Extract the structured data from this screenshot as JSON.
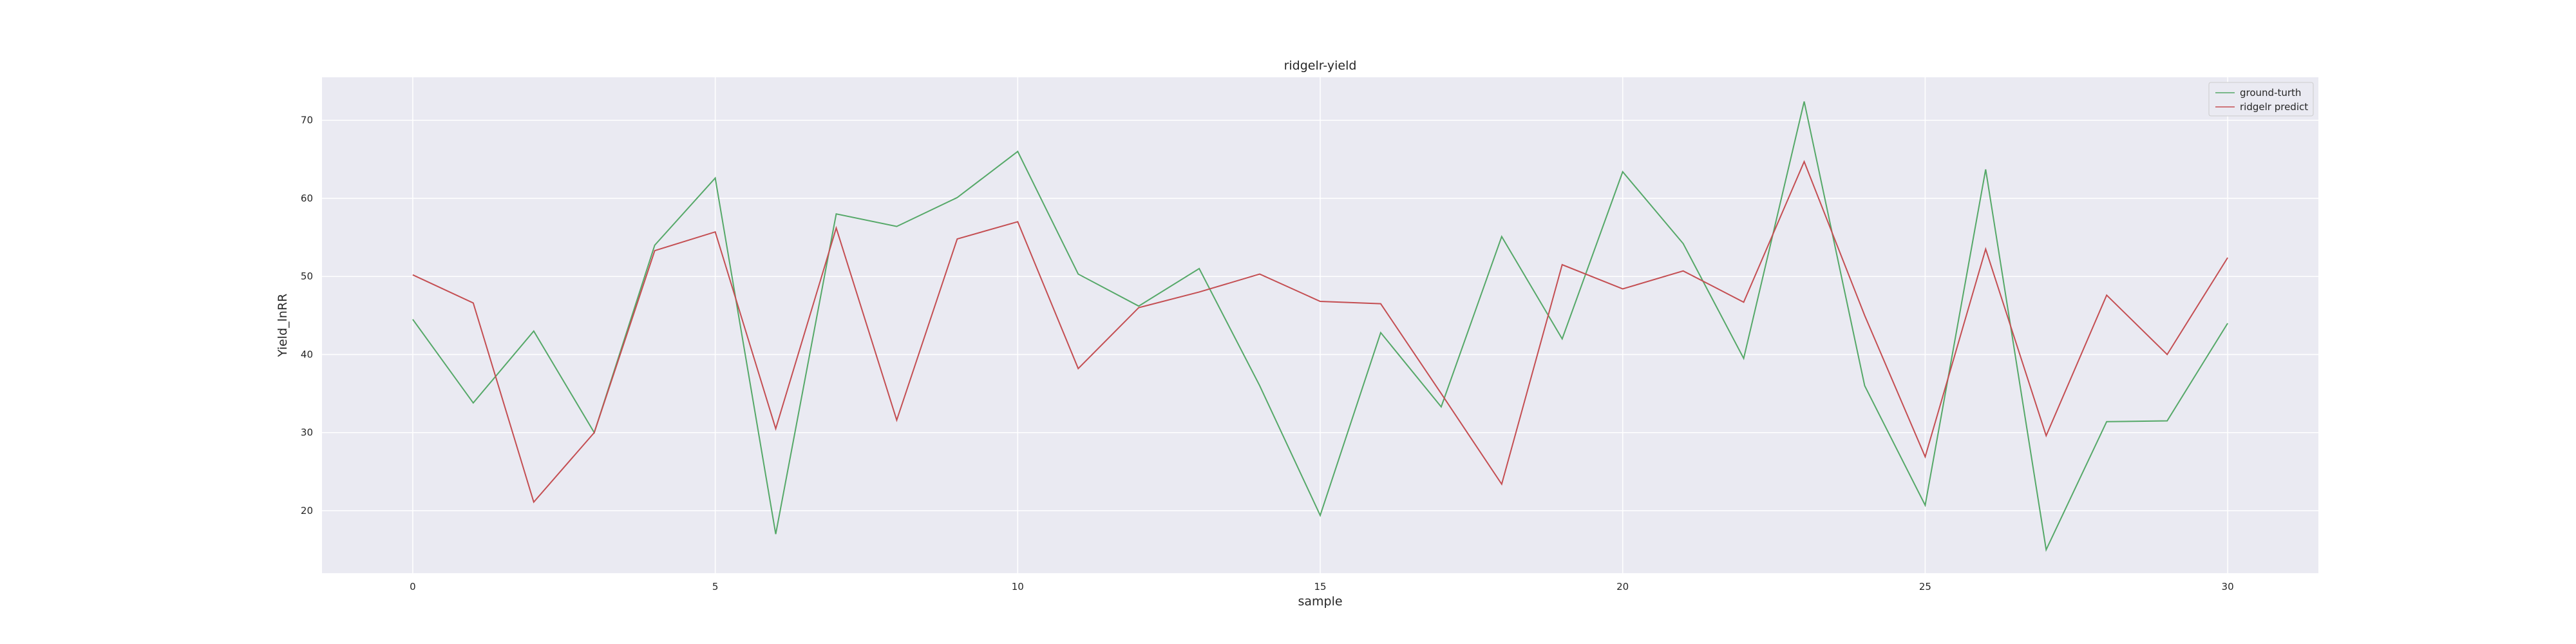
{
  "chart_data": {
    "type": "line",
    "title": "ridgelr-yield",
    "xlabel": "sample",
    "ylabel": "Yield_lnRR",
    "xlim": [
      -1.5,
      31.5
    ],
    "ylim": [
      12,
      75.5
    ],
    "xticks": [
      0,
      5,
      10,
      15,
      20,
      25,
      30
    ],
    "yticks": [
      20,
      30,
      40,
      50,
      60,
      70
    ],
    "grid": true,
    "legend_position": "top-right",
    "x": [
      0,
      1,
      2,
      3,
      4,
      5,
      6,
      7,
      8,
      9,
      10,
      11,
      12,
      13,
      14,
      15,
      16,
      17,
      18,
      19,
      20,
      21,
      22,
      23,
      24,
      25,
      26,
      27,
      28,
      29,
      30
    ],
    "series": [
      {
        "name": "ground-turth",
        "color": "#55a868",
        "values": [
          44.5,
          33.8,
          43.0,
          30.0,
          54.0,
          62.6,
          17.0,
          58.0,
          56.4,
          60.1,
          66.0,
          50.3,
          46.2,
          51.0,
          36.0,
          19.4,
          42.8,
          33.3,
          55.1,
          42.0,
          63.4,
          54.2,
          39.5,
          72.4,
          36.0,
          20.7,
          63.7,
          15.0,
          31.4,
          31.5,
          44.0
        ]
      },
      {
        "name": "ridgelr predict",
        "color": "#c44e52",
        "values": [
          50.2,
          46.6,
          21.1,
          30.0,
          53.3,
          55.7,
          30.5,
          56.2,
          31.6,
          54.8,
          57.0,
          38.2,
          46.0,
          48.0,
          50.3,
          46.8,
          46.5,
          35.0,
          23.4,
          51.5,
          48.4,
          50.7,
          46.7,
          64.7,
          45.0,
          26.9,
          53.5,
          29.6,
          47.6,
          40.0,
          52.4
        ]
      }
    ]
  }
}
